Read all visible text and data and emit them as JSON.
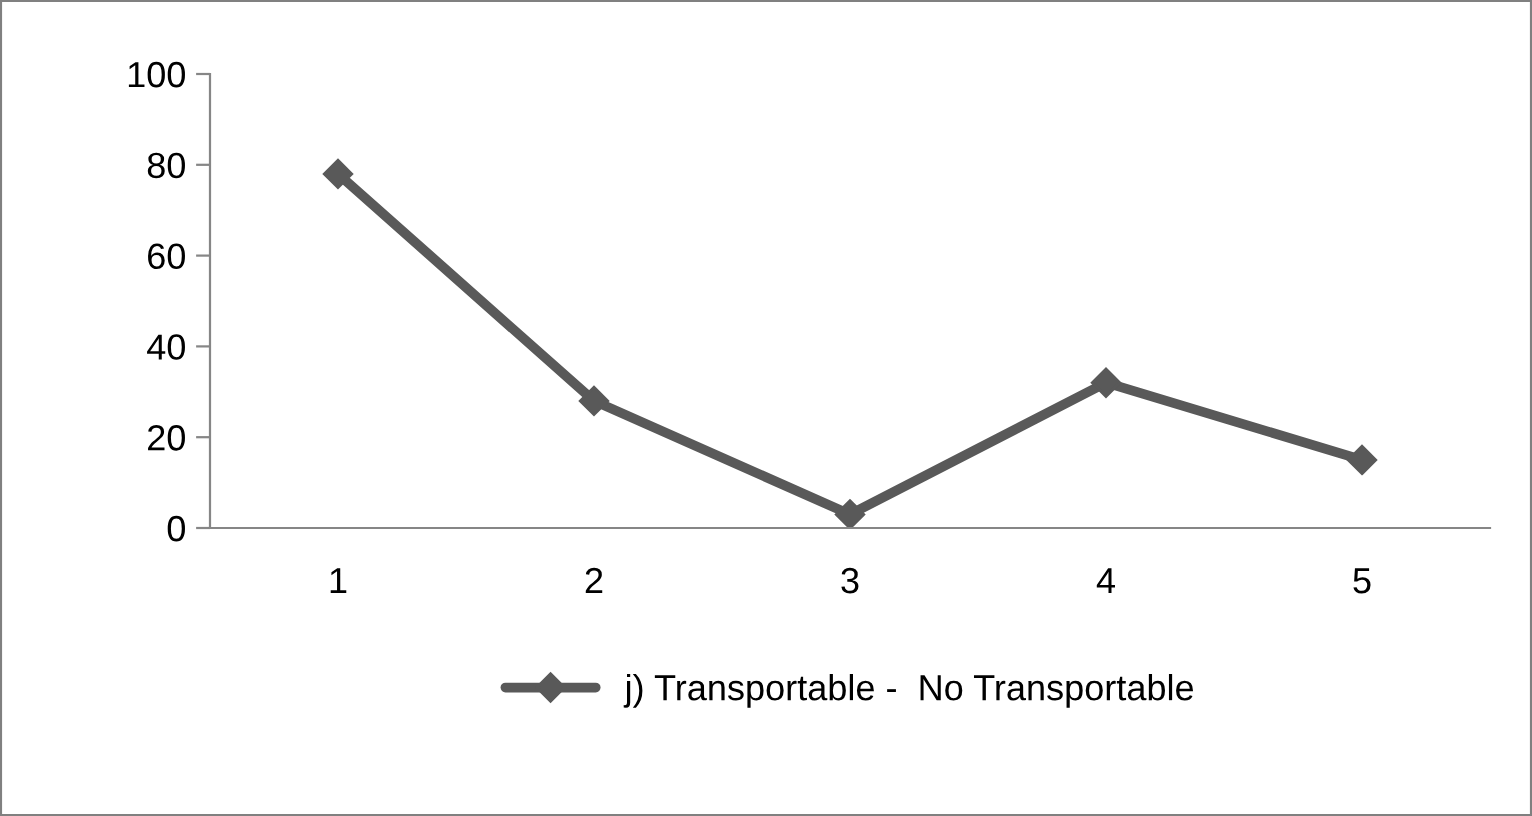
{
  "chart_data": {
    "type": "line",
    "categories": [
      "1",
      "2",
      "3",
      "4",
      "5"
    ],
    "series": [
      {
        "name": "j) Transportable -  No Transportable",
        "color": "#595959",
        "values": [
          78,
          28,
          3,
          32,
          15
        ]
      }
    ],
    "ylim": [
      0,
      100
    ],
    "yticks": [
      0,
      20,
      40,
      60,
      80,
      100
    ],
    "grid": false,
    "legend": "bottom",
    "marker": "diamond",
    "line_style": "solid"
  }
}
